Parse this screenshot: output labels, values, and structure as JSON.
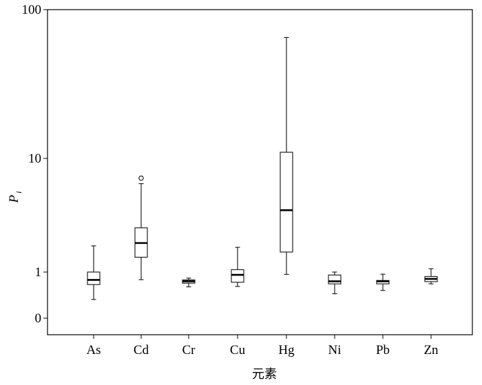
{
  "chart_data": {
    "type": "box",
    "xlabel": "元素",
    "ylabel": "P",
    "ylabel_sub": "i",
    "y_ticks": [
      {
        "value": 0,
        "label": "0"
      },
      {
        "value": 1,
        "label": "1"
      },
      {
        "value": 10,
        "label": "10"
      },
      {
        "value": 100,
        "label": "100"
      }
    ],
    "categories": [
      "As",
      "Cd",
      "Cr",
      "Cu",
      "Hg",
      "Ni",
      "Pb",
      "Zn"
    ],
    "boxes": [
      {
        "whisker_low": 0.2,
        "q1": 0.48,
        "median": 0.63,
        "q3": 1.0,
        "whisker_high": 1.7,
        "outliers": []
      },
      {
        "whisker_low": 0.64,
        "q1": 1.35,
        "median": 1.8,
        "q3": 2.45,
        "whisker_high": 6.0,
        "outliers": [
          6.7
        ]
      },
      {
        "whisker_low": 0.42,
        "q1": 0.52,
        "median": 0.58,
        "q3": 0.63,
        "whisker_high": 0.7,
        "outliers": []
      },
      {
        "whisker_low": 0.43,
        "q1": 0.55,
        "median": 0.85,
        "q3": 1.05,
        "whisker_high": 1.65,
        "outliers": []
      },
      {
        "whisker_low": 0.87,
        "q1": 1.5,
        "median": 3.5,
        "q3": 11.0,
        "whisker_high": 65.0,
        "outliers": []
      },
      {
        "whisker_low": 0.28,
        "q1": 0.5,
        "median": 0.58,
        "q3": 0.84,
        "whisker_high": 1.0,
        "outliers": []
      },
      {
        "whisker_low": 0.34,
        "q1": 0.5,
        "median": 0.58,
        "q3": 0.61,
        "whisker_high": 0.88,
        "outliers": []
      },
      {
        "whisker_low": 0.5,
        "q1": 0.57,
        "median": 0.67,
        "q3": 0.77,
        "whisker_high": 1.07,
        "outliers": []
      }
    ]
  }
}
